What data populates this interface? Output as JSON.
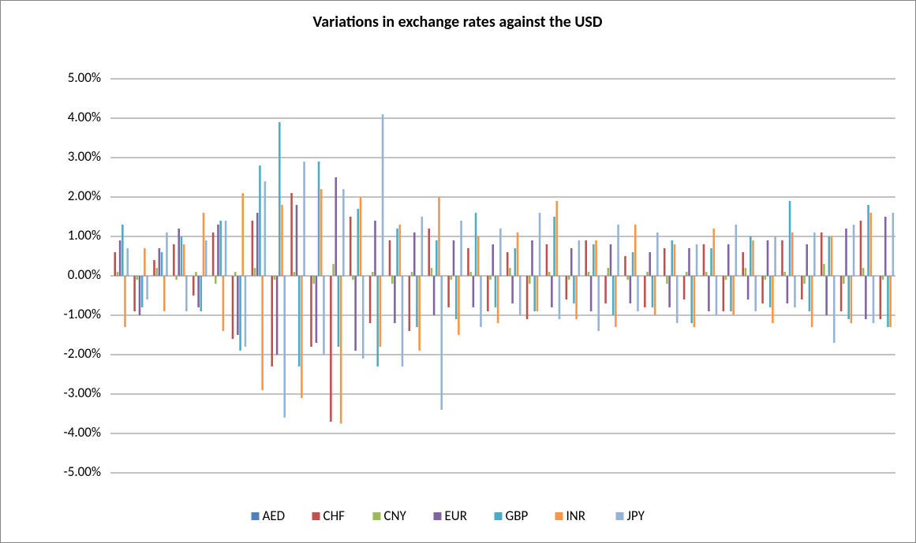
{
  "chart_data": {
    "type": "bar",
    "title": "Variations in exchange rates against the USD",
    "categories": [
      null,
      null,
      null,
      null,
      null,
      null,
      null,
      null,
      null,
      null,
      null,
      null,
      null,
      null,
      null,
      null,
      null,
      null,
      null,
      null,
      null,
      null,
      null,
      null,
      null,
      null,
      null,
      null,
      null,
      null,
      null,
      null,
      null,
      null,
      null,
      null,
      null,
      null,
      null,
      null
    ],
    "series": [
      {
        "name": "AED",
        "color": "#4f81bd",
        "values": [
          0,
          0.01,
          -0.01,
          0,
          0.01,
          0,
          -0.01,
          0,
          0.01,
          0,
          -0.01,
          0.01,
          0,
          0,
          -0.01,
          0,
          0.01,
          0,
          0,
          -0.01,
          0,
          0.01,
          0,
          0,
          -0.01,
          0,
          0.01,
          0,
          0,
          0,
          -0.01,
          0,
          0.01,
          0,
          0,
          -0.01,
          0,
          0.01,
          0,
          0
        ]
      },
      {
        "name": "CHF",
        "color": "#c0504d",
        "values": [
          0.6,
          -0.9,
          0.4,
          0.8,
          -0.5,
          1.1,
          -1.6,
          1.4,
          -2.3,
          2.1,
          -1.8,
          -3.7,
          1.5,
          -1.2,
          0.9,
          -1.4,
          1.2,
          -0.8,
          0.7,
          -0.9,
          0.6,
          -1.1,
          0.8,
          -0.6,
          0.9,
          -0.7,
          0.5,
          -0.8,
          0.7,
          -0.6,
          0.8,
          -0.9,
          0.6,
          -0.7,
          0.9,
          -0.6,
          1.1,
          -0.9,
          1.4,
          -1.1
        ]
      },
      {
        "name": "CNY",
        "color": "#9bbb59",
        "values": [
          0.1,
          -0.1,
          0.2,
          -0.1,
          0.1,
          -0.2,
          0.1,
          0.2,
          -0.1,
          0.1,
          -0.2,
          0.3,
          -0.1,
          0.1,
          -0.2,
          0.1,
          0.2,
          -0.1,
          0.1,
          -0.1,
          0.2,
          -0.2,
          0.1,
          -0.1,
          0.1,
          0.2,
          -0.1,
          0.1,
          -0.2,
          0.1,
          0.1,
          -0.1,
          0.2,
          -0.1,
          0.1,
          -0.2,
          0.3,
          -0.2,
          0.2,
          -0.1
        ]
      },
      {
        "name": "EUR",
        "color": "#8064a2",
        "values": [
          0.9,
          -1.0,
          0.7,
          1.2,
          -0.8,
          1.3,
          -1.5,
          1.6,
          -2.0,
          1.8,
          -1.7,
          2.5,
          -1.9,
          1.4,
          -1.2,
          1.1,
          -1.0,
          0.9,
          -0.8,
          0.8,
          -0.7,
          0.9,
          -0.8,
          0.7,
          -0.9,
          0.8,
          -0.7,
          0.6,
          -0.8,
          0.7,
          -0.9,
          0.8,
          -0.6,
          0.9,
          -0.7,
          0.8,
          -1.0,
          1.2,
          -1.1,
          1.5
        ]
      },
      {
        "name": "GBP",
        "color": "#4bacc6",
        "values": [
          1.3,
          -0.8,
          0.6,
          1.0,
          -0.9,
          1.4,
          -1.9,
          2.8,
          3.9,
          -2.3,
          2.9,
          -1.8,
          1.7,
          -2.3,
          1.2,
          -1.3,
          0.9,
          -1.1,
          1.6,
          -0.8,
          0.7,
          -0.9,
          1.5,
          -0.7,
          0.8,
          -1.0,
          0.6,
          -0.8,
          0.9,
          -1.2,
          0.7,
          -0.9,
          1.0,
          -0.8,
          1.9,
          -0.9,
          1.0,
          -1.1,
          1.8,
          -1.3
        ]
      },
      {
        "name": "INR",
        "color": "#f79646",
        "values": [
          -1.3,
          0.7,
          -0.9,
          0.8,
          1.6,
          -1.4,
          2.1,
          -2.9,
          1.8,
          -3.1,
          2.2,
          -3.75,
          2.0,
          -1.8,
          1.3,
          -1.9,
          2.0,
          -1.5,
          1.0,
          -1.2,
          1.1,
          -0.9,
          1.9,
          -1.1,
          0.9,
          -1.3,
          1.3,
          -1.0,
          0.8,
          -1.3,
          1.2,
          -1.0,
          0.9,
          -1.2,
          1.1,
          -1.3,
          1.0,
          -1.2,
          1.6,
          -1.3
        ]
      },
      {
        "name": "JPY",
        "color": "#95b3d7",
        "values": [
          0.7,
          -0.6,
          1.1,
          -0.9,
          0.9,
          1.4,
          -1.8,
          2.4,
          -3.6,
          2.9,
          -2.0,
          2.2,
          -2.1,
          4.1,
          -2.3,
          1.5,
          -3.4,
          1.4,
          -1.3,
          1.2,
          -1.0,
          1.6,
          -1.1,
          0.9,
          -1.4,
          1.3,
          -0.9,
          1.1,
          -1.2,
          0.8,
          -1.0,
          1.3,
          -0.9,
          1.0,
          -0.8,
          1.1,
          -1.7,
          1.3,
          -1.2,
          1.6
        ]
      }
    ],
    "ylim": [
      -5,
      5
    ],
    "yticks": [
      {
        "value": 5,
        "label": "5.00%"
      },
      {
        "value": 4,
        "label": "4.00%"
      },
      {
        "value": 3,
        "label": "3.00%"
      },
      {
        "value": 2,
        "label": "2.00%"
      },
      {
        "value": 1,
        "label": "1.00%"
      },
      {
        "value": 0,
        "label": "0.00%"
      },
      {
        "value": -1,
        "label": "-1.00%"
      },
      {
        "value": -2,
        "label": "-2.00%"
      },
      {
        "value": -3,
        "label": "-3.00%"
      },
      {
        "value": -4,
        "label": "-4.00%"
      },
      {
        "value": -5,
        "label": "-5.00%"
      }
    ],
    "grid": true,
    "legend": "bottom"
  }
}
